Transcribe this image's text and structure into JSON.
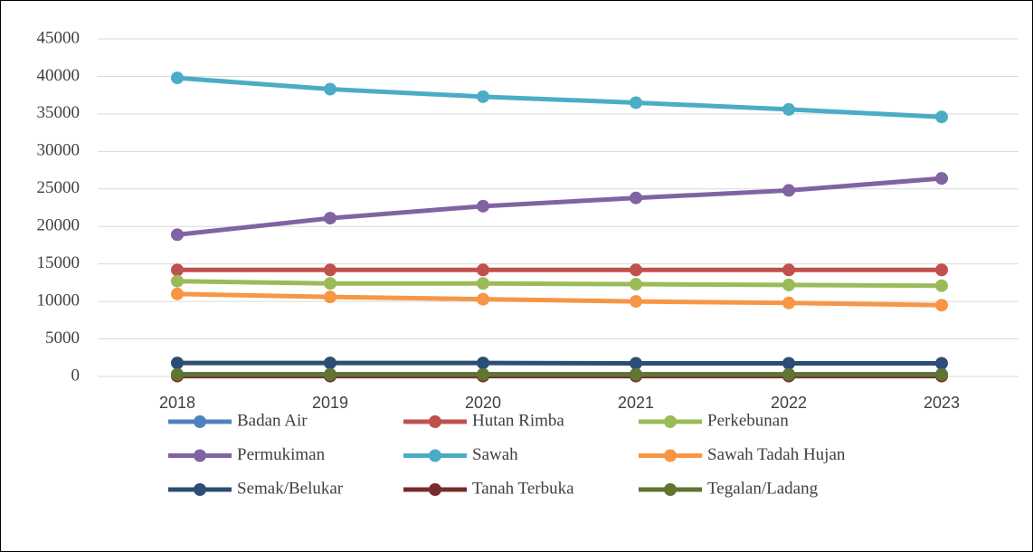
{
  "chart_data": {
    "type": "line",
    "x": [
      "2018",
      "2019",
      "2020",
      "2021",
      "2022",
      "2023"
    ],
    "series": [
      {
        "name": "Badan Air",
        "color": "#4f81bd",
        "values": [
          300,
          300,
          300,
          300,
          300,
          300
        ]
      },
      {
        "name": "Hutan Rimba",
        "color": "#c0504d",
        "values": [
          14200,
          14200,
          14200,
          14200,
          14200,
          14200
        ]
      },
      {
        "name": "Perkebunan",
        "color": "#9bbb59",
        "values": [
          12700,
          12400,
          12400,
          12300,
          12200,
          12100
        ]
      },
      {
        "name": "Permukiman",
        "color": "#8064a2",
        "values": [
          18900,
          21100,
          22700,
          23800,
          24800,
          26400
        ]
      },
      {
        "name": "Sawah",
        "color": "#4bacc6",
        "values": [
          39800,
          38300,
          37300,
          36500,
          35600,
          34600
        ]
      },
      {
        "name": "Sawah Tadah Hujan",
        "color": "#f79646",
        "values": [
          11000,
          10600,
          10300,
          10000,
          9800,
          9500
        ]
      },
      {
        "name": "Semak/Belukar",
        "color": "#2c4d75",
        "values": [
          1800,
          1800,
          1800,
          1750,
          1750,
          1750
        ]
      },
      {
        "name": "Tanah Terbuka",
        "color": "#772c2a",
        "values": [
          50,
          50,
          50,
          50,
          50,
          50
        ]
      },
      {
        "name": "Tegalan/Ladang",
        "color": "#5f7530",
        "values": [
          250,
          250,
          250,
          250,
          250,
          250
        ]
      }
    ],
    "ylim": [
      0,
      45000
    ],
    "yticks": [
      0,
      5000,
      10000,
      15000,
      20000,
      25000,
      30000,
      35000,
      40000,
      45000
    ],
    "grid": true,
    "legend": "bottom"
  }
}
